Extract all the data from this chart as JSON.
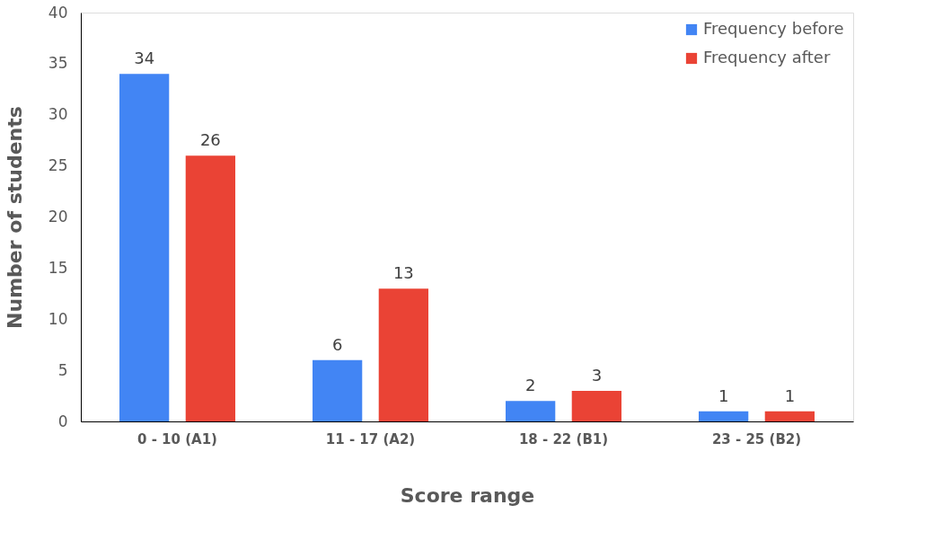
{
  "chart_data": {
    "type": "bar",
    "xlabel": "Score range",
    "ylabel": "Number of students",
    "categories": [
      "0 - 10 (A1)",
      "11 - 17 (A2)",
      "18 - 22 (B1)",
      "23 - 25 (B2)"
    ],
    "series": [
      {
        "name": "Frequency before",
        "color": "#4285f4",
        "values": [
          34,
          6,
          2,
          1
        ]
      },
      {
        "name": "Frequency after",
        "color": "#ea4335",
        "values": [
          26,
          13,
          3,
          1
        ]
      }
    ],
    "ylim": [
      0,
      40
    ],
    "yticks": [
      0,
      5,
      10,
      15,
      20,
      25,
      30,
      35,
      40
    ],
    "grid": false,
    "legend": "top right",
    "data_labels": true
  }
}
